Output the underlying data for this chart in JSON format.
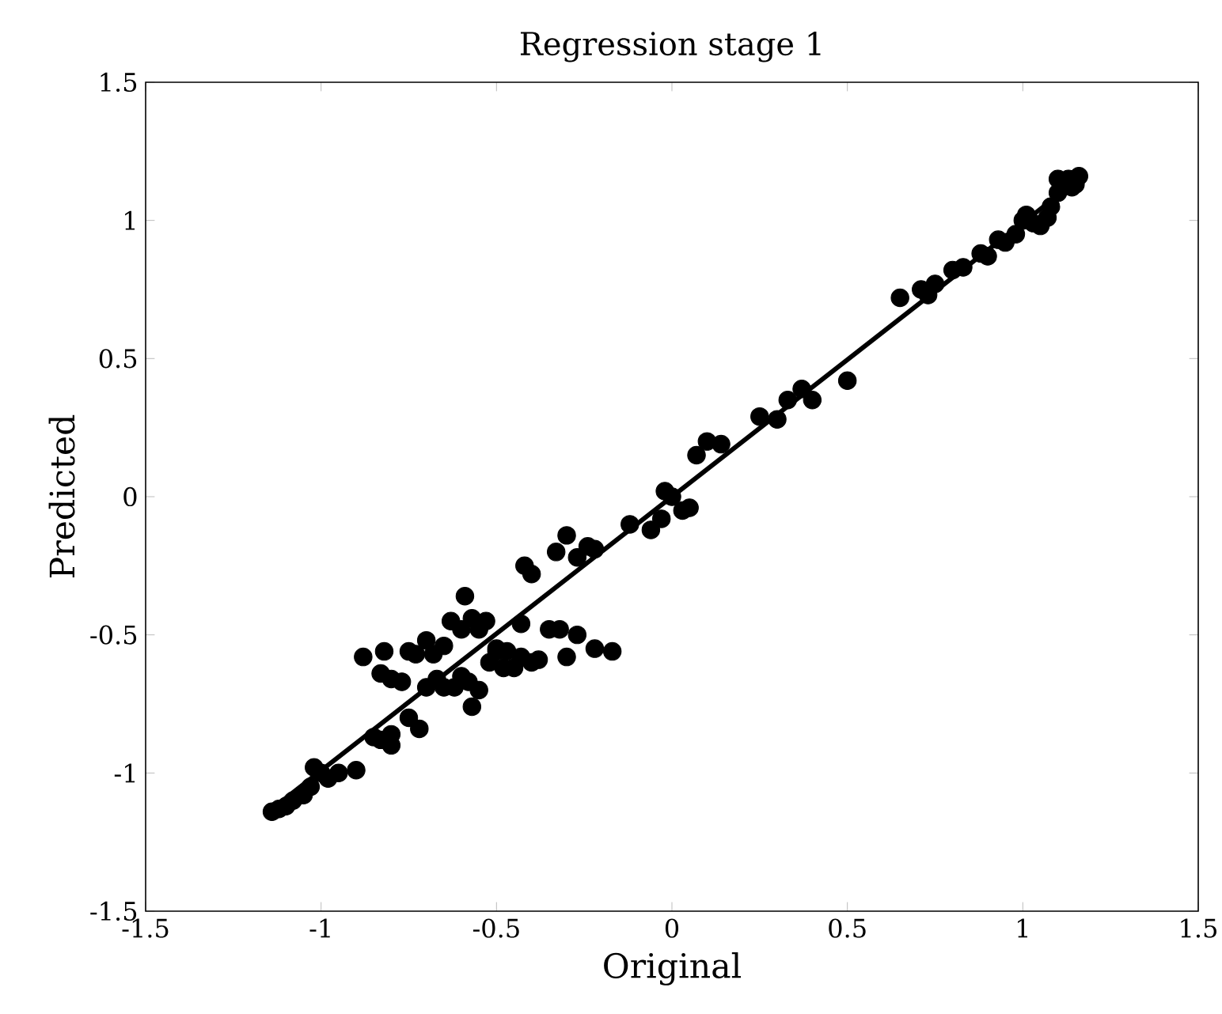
{
  "chart_data": {
    "type": "scatter",
    "title": "Regression stage 1",
    "xlabel": "Original",
    "ylabel": "Predicted",
    "xlim": [
      -1.5,
      1.5
    ],
    "ylim": [
      -1.5,
      1.5
    ],
    "xticks": [
      -1.5,
      -1,
      -0.5,
      0,
      0.5,
      1,
      1.5
    ],
    "yticks": [
      -1.5,
      -1,
      -0.5,
      0,
      0.5,
      1,
      1.5
    ],
    "series": [
      {
        "color": "#000000",
        "marker": "circle",
        "x": [
          -1.14,
          -1.12,
          -1.1,
          -1.08,
          -1.05,
          -1.03,
          -1.02,
          -1.0,
          -0.98,
          -0.95,
          -0.9,
          -0.85,
          -0.83,
          -0.8,
          -0.8,
          -0.75,
          -0.72,
          -0.7,
          -0.67,
          -0.65,
          -0.62,
          -0.6,
          -0.58,
          -0.57,
          -0.55,
          -0.52,
          -0.5,
          -0.48,
          -0.45,
          -0.43,
          -0.88,
          -0.82,
          -0.83,
          -0.8,
          -0.77,
          -0.75,
          -0.73,
          -0.7,
          -0.68,
          -0.65,
          -0.63,
          -0.6,
          -0.59,
          -0.57,
          -0.55,
          -0.53,
          -0.5,
          -0.47,
          -0.43,
          -0.4,
          -0.38,
          -0.35,
          -0.32,
          -0.3,
          -0.27,
          -0.22,
          -0.17,
          -0.42,
          -0.4,
          -0.33,
          -0.3,
          -0.27,
          -0.24,
          -0.22,
          -0.12,
          -0.06,
          -0.03,
          -0.02,
          0.0,
          0.03,
          0.05,
          0.07,
          0.1,
          0.14,
          0.25,
          0.3,
          0.33,
          0.37,
          0.4,
          0.5,
          0.65,
          0.71,
          0.73,
          0.75,
          0.8,
          0.83,
          0.88,
          0.9,
          0.93,
          0.95,
          0.98,
          1.0,
          1.01,
          1.03,
          1.05,
          1.07,
          1.08,
          1.1,
          1.1,
          1.13,
          1.14,
          1.15,
          1.16
        ],
        "values": [
          -1.14,
          -1.13,
          -1.12,
          -1.1,
          -1.08,
          -1.05,
          -0.98,
          -1.0,
          -1.02,
          -1.0,
          -0.99,
          -0.87,
          -0.88,
          -0.9,
          -0.86,
          -0.8,
          -0.84,
          -0.69,
          -0.66,
          -0.69,
          -0.69,
          -0.65,
          -0.67,
          -0.76,
          -0.7,
          -0.6,
          -0.56,
          -0.62,
          -0.62,
          -0.58,
          -0.58,
          -0.56,
          -0.64,
          -0.66,
          -0.67,
          -0.56,
          -0.57,
          -0.52,
          -0.57,
          -0.54,
          -0.45,
          -0.48,
          -0.36,
          -0.44,
          -0.48,
          -0.45,
          -0.55,
          -0.56,
          -0.46,
          -0.6,
          -0.59,
          -0.48,
          -0.48,
          -0.58,
          -0.5,
          -0.55,
          -0.56,
          -0.25,
          -0.28,
          -0.2,
          -0.14,
          -0.22,
          -0.18,
          -0.19,
          -0.1,
          -0.12,
          -0.08,
          0.02,
          0.0,
          -0.05,
          -0.04,
          0.15,
          0.2,
          0.19,
          0.29,
          0.28,
          0.35,
          0.39,
          0.35,
          0.42,
          0.72,
          0.75,
          0.73,
          0.77,
          0.82,
          0.83,
          0.88,
          0.87,
          0.93,
          0.92,
          0.95,
          1.0,
          1.02,
          0.99,
          0.98,
          1.01,
          1.05,
          1.1,
          1.15,
          1.15,
          1.12,
          1.13,
          1.16
        ]
      },
      {
        "type": "line",
        "color": "#000000",
        "marker": "none",
        "x": [
          -1.15,
          1.15
        ],
        "values": [
          -1.14,
          1.14
        ]
      }
    ]
  }
}
